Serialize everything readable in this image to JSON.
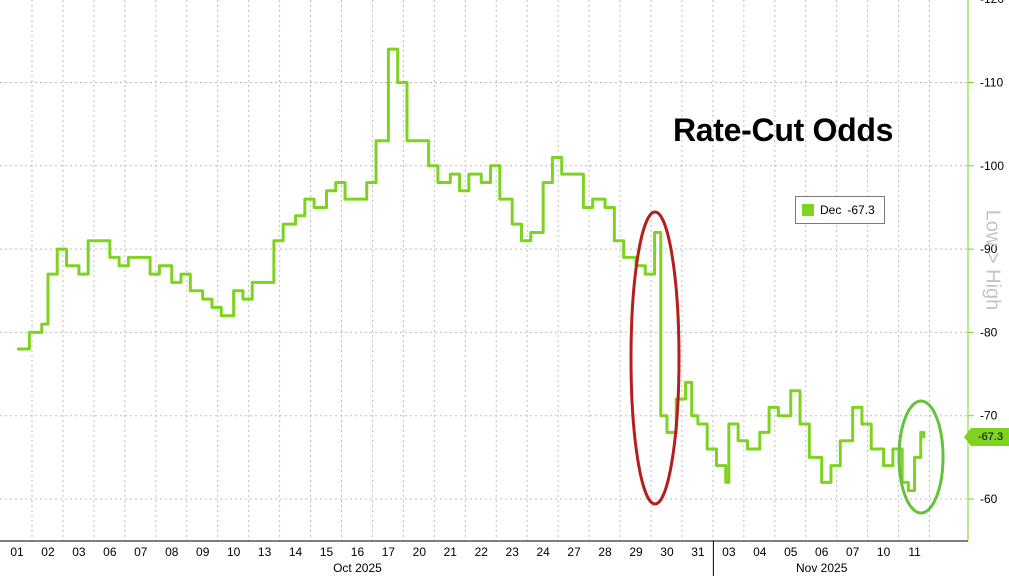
{
  "title": "Rate-Cut Odds",
  "legend": {
    "label": "Dec",
    "value": "-67.3"
  },
  "axis_side_label": "Low > High",
  "last_value_tag": "-67.3",
  "colors": {
    "series": "#7ed321",
    "red_ellipse": "#b51e1e",
    "green_ellipse": "#63c43c",
    "grid": "#bdbdbd",
    "background": "#ffffff"
  },
  "annotations": [
    {
      "name": "red-ellipse",
      "shape": "ellipse",
      "color": "#b51e1e",
      "note": "Oct 29-30 drop"
    },
    {
      "name": "green-ellipse",
      "shape": "ellipse",
      "color": "#63c43c",
      "note": "Nov 10-11 recovery"
    }
  ],
  "chart_data": {
    "type": "line",
    "title": "Rate-Cut Odds",
    "xlabel": "",
    "ylabel": "Low > High",
    "ylim": [
      55,
      120
    ],
    "y_ticks": [
      "-60",
      "-70",
      "-80",
      "-90",
      "-100",
      "-110",
      "-120"
    ],
    "y_tick_values": [
      60,
      70,
      80,
      90,
      100,
      110,
      120
    ],
    "grid": true,
    "legend_position": "top-right",
    "x_categories": [
      "01",
      "02",
      "03",
      "06",
      "07",
      "08",
      "09",
      "10",
      "13",
      "14",
      "15",
      "16",
      "17",
      "20",
      "21",
      "22",
      "23",
      "24",
      "27",
      "28",
      "29",
      "30",
      "31",
      "03",
      "04",
      "05",
      "06",
      "07",
      "10",
      "11"
    ],
    "month_labels": [
      {
        "label": "Oct 2025",
        "from_index": 0,
        "to_index": 22
      },
      {
        "label": "Nov 2025",
        "from_index": 23,
        "to_index": 29
      }
    ],
    "series": [
      {
        "name": "Dec",
        "last_value": -67.3,
        "points": [
          [
            0,
            78
          ],
          [
            0.4,
            80
          ],
          [
            0.8,
            81
          ],
          [
            1,
            87
          ],
          [
            1.3,
            90
          ],
          [
            1.6,
            88
          ],
          [
            2,
            87
          ],
          [
            2.3,
            91
          ],
          [
            2.6,
            91
          ],
          [
            3,
            89
          ],
          [
            3.3,
            88
          ],
          [
            3.6,
            89
          ],
          [
            4,
            89
          ],
          [
            4.3,
            87
          ],
          [
            4.6,
            88
          ],
          [
            5,
            86
          ],
          [
            5.3,
            87
          ],
          [
            5.6,
            85
          ],
          [
            6,
            84
          ],
          [
            6.3,
            83
          ],
          [
            6.6,
            82
          ],
          [
            7,
            85
          ],
          [
            7.3,
            84
          ],
          [
            7.6,
            86
          ],
          [
            8,
            86
          ],
          [
            8.3,
            91
          ],
          [
            8.6,
            93
          ],
          [
            9,
            94
          ],
          [
            9.3,
            96
          ],
          [
            9.6,
            95
          ],
          [
            10,
            97
          ],
          [
            10.3,
            98
          ],
          [
            10.6,
            96
          ],
          [
            11,
            96
          ],
          [
            11.3,
            98
          ],
          [
            11.6,
            103
          ],
          [
            12,
            114
          ],
          [
            12.3,
            110
          ],
          [
            12.6,
            103
          ],
          [
            13,
            103
          ],
          [
            13.3,
            100
          ],
          [
            13.6,
            98
          ],
          [
            14,
            99
          ],
          [
            14.3,
            97
          ],
          [
            14.6,
            99
          ],
          [
            15,
            98
          ],
          [
            15.3,
            100
          ],
          [
            15.6,
            96
          ],
          [
            16,
            93
          ],
          [
            16.3,
            91
          ],
          [
            16.6,
            92
          ],
          [
            17,
            98
          ],
          [
            17.3,
            101
          ],
          [
            17.6,
            99
          ],
          [
            18,
            99
          ],
          [
            18.3,
            95
          ],
          [
            18.6,
            96
          ],
          [
            19,
            95
          ],
          [
            19.3,
            91
          ],
          [
            19.6,
            89
          ],
          [
            20,
            88
          ],
          [
            20.3,
            87
          ],
          [
            20.6,
            92
          ],
          [
            20.8,
            70
          ],
          [
            21,
            68
          ],
          [
            21.3,
            72
          ],
          [
            21.6,
            74
          ],
          [
            21.8,
            70
          ],
          [
            22,
            69
          ],
          [
            22.3,
            66
          ],
          [
            22.6,
            64
          ],
          [
            22.9,
            62
          ],
          [
            23,
            69
          ],
          [
            23.3,
            67
          ],
          [
            23.6,
            66
          ],
          [
            24,
            68
          ],
          [
            24.3,
            71
          ],
          [
            24.6,
            70
          ],
          [
            25,
            73
          ],
          [
            25.3,
            69
          ],
          [
            25.6,
            65
          ],
          [
            26,
            62
          ],
          [
            26.3,
            64
          ],
          [
            26.6,
            67
          ],
          [
            27,
            71
          ],
          [
            27.3,
            69
          ],
          [
            27.6,
            66
          ],
          [
            28,
            64
          ],
          [
            28.3,
            66
          ],
          [
            28.6,
            62
          ],
          [
            28.8,
            61
          ],
          [
            29,
            65
          ],
          [
            29.2,
            68
          ],
          [
            29.3,
            67.3
          ]
        ]
      }
    ]
  }
}
